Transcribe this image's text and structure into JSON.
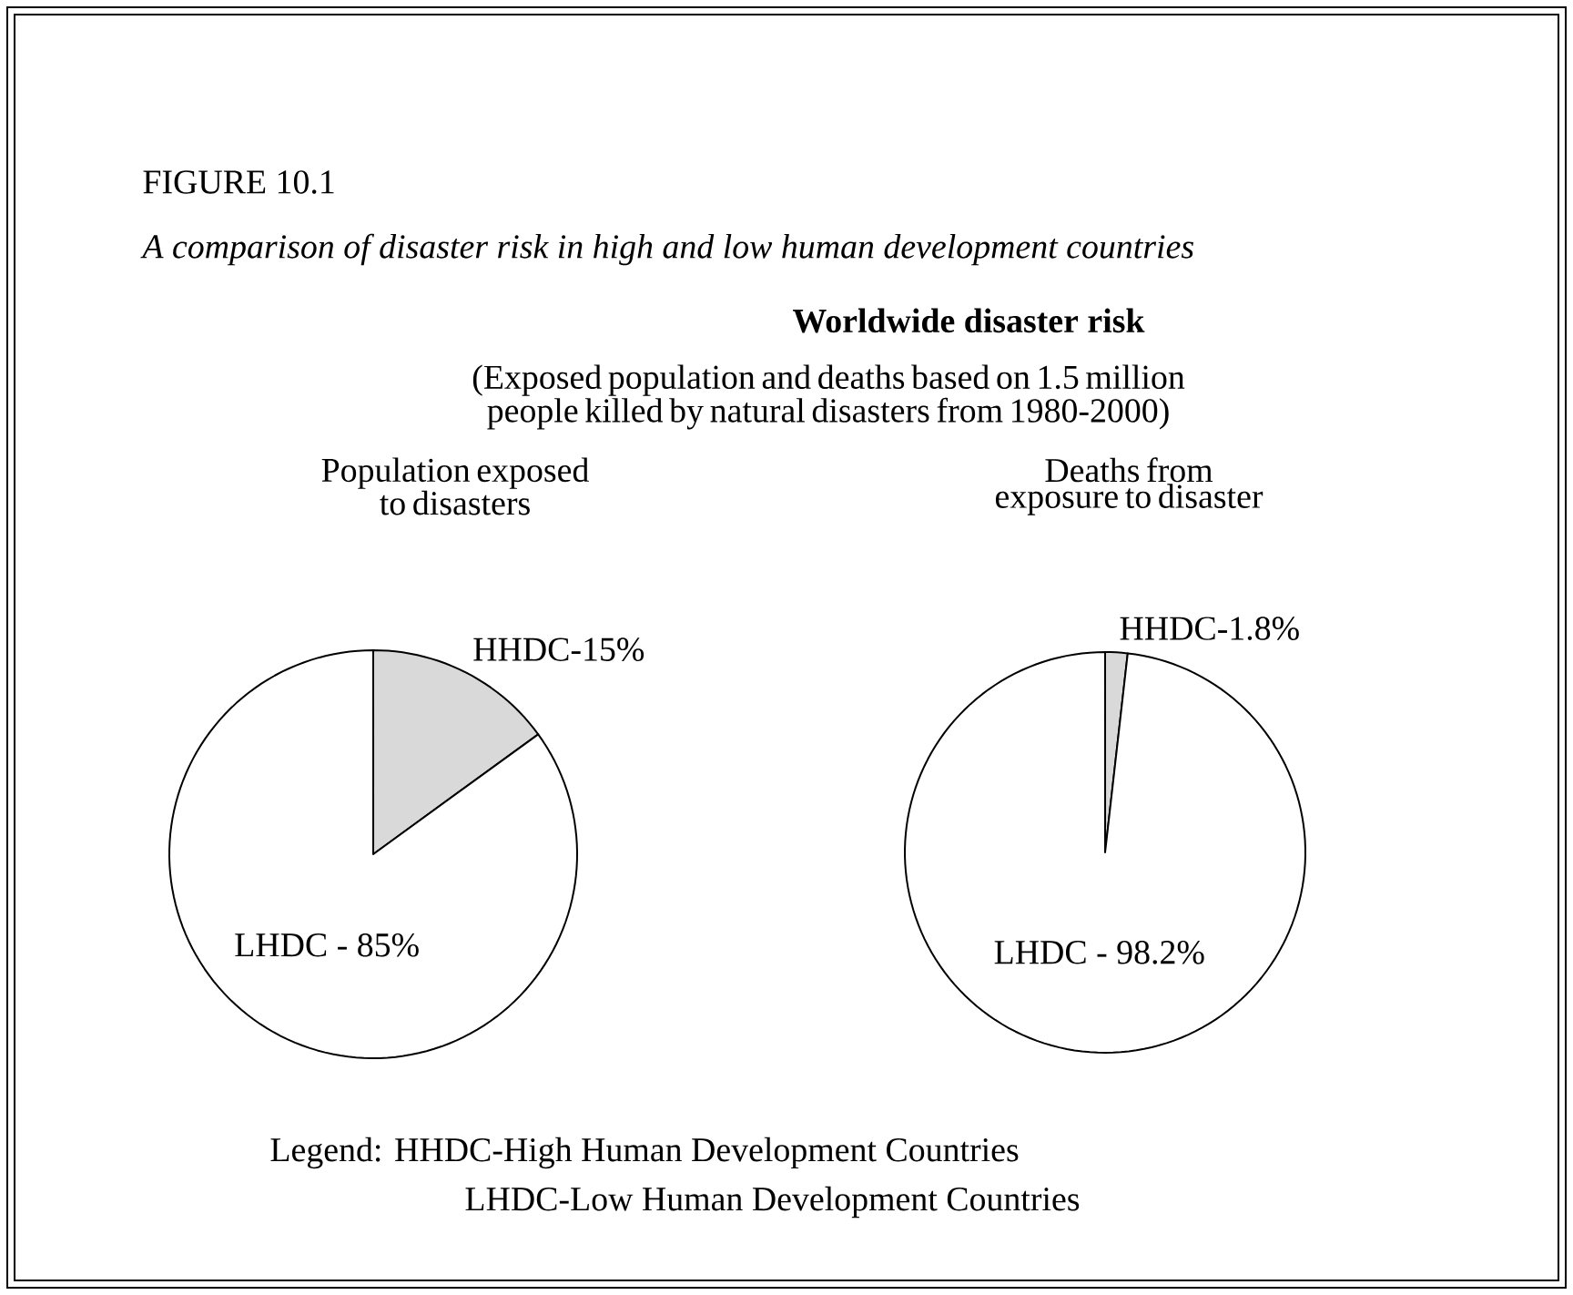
{
  "chart_data": [
    {
      "type": "other",
      "title": "FIGURE 10.1",
      "subtitle": "A comparison of disaster risk in high and low human development countries",
      "annotations": [
        "Worldwide disaster risk",
        "(Exposed population and deaths based on 1.5 million people killed by natural disasters from 1980-2000)",
        "Legend: HHDC-High Human Development Countries",
        "LHDC-Low Human Development Countries"
      ]
    },
    {
      "type": "pie",
      "title": "Population exposed to disasters",
      "categories": [
        "HHDC-15%",
        "LHDC - 85%"
      ],
      "values": [
        15,
        85
      ],
      "colors": [
        "#d9d9d9",
        "#ffffff"
      ]
    },
    {
      "type": "pie",
      "title": "Deaths from exposure to disaster",
      "categories": [
        "HHDC-1.8%",
        "LHDC - 98.2%"
      ],
      "values": [
        1.8,
        98.2
      ],
      "colors": [
        "#d9d9d9",
        "#ffffff"
      ]
    }
  ]
}
